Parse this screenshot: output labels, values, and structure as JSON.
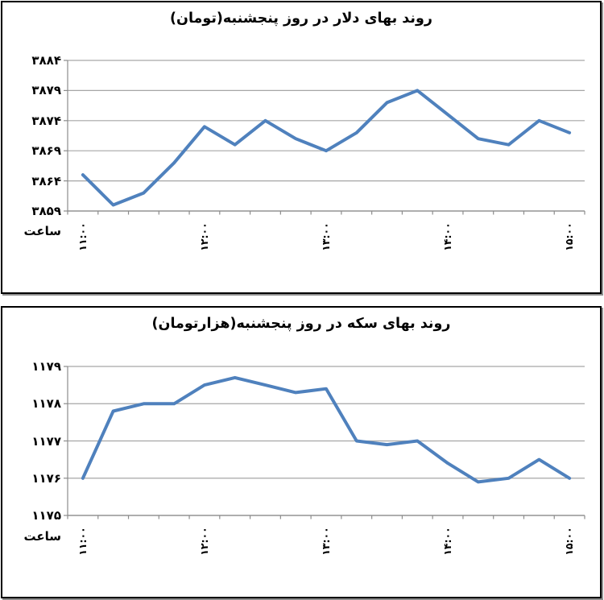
{
  "page": {
    "background": "#ffffff"
  },
  "colors": {
    "line": "#4F81BD",
    "grid": "#A6A6A6",
    "axis": "#8C8C8C",
    "text": "#000000",
    "panel_border": "#000000"
  },
  "chart_data": [
    {
      "type": "line",
      "title": "روند بهای دلار در روز پنجشنبه(تومان)",
      "xlabel": "ساعت",
      "ylabel": "",
      "x": [
        "11:00",
        "11:15",
        "11:30",
        "11:45",
        "12:00",
        "12:15",
        "12:30",
        "12:45",
        "13:00",
        "13:15",
        "13:30",
        "13:45",
        "14:00",
        "14:15",
        "14:30",
        "14:45",
        "15:00"
      ],
      "values": [
        3865,
        3860,
        3862,
        3867,
        3873,
        3870,
        3874,
        3871,
        3869,
        3872,
        3877,
        3879,
        3875,
        3871,
        3870,
        3874,
        3872
      ],
      "ylim": [
        3859,
        3884
      ],
      "yticks": [
        3884,
        3879,
        3874,
        3869,
        3864,
        3859
      ],
      "ytick_labels": [
        "۳۸۸۴",
        "۳۸۷۹",
        "۳۸۷۴",
        "۳۸۶۹",
        "۳۸۶۴",
        "۳۸۵۹"
      ],
      "xtick_labels": [
        "۱۱:۰۰",
        "۱۲:۰۰",
        "۱۳:۰۰",
        "۱۴:۰۰",
        "۱۵:۰۰"
      ],
      "xtick_indices": [
        0,
        4,
        8,
        12,
        16
      ],
      "grid": true,
      "legend": "none",
      "line_color": "#4F81BD"
    },
    {
      "type": "line",
      "title": "روند بهای سکه در روز پنجشنبه(هزارتومان)",
      "xlabel": "ساعت",
      "ylabel": "",
      "x": [
        "11:00",
        "11:15",
        "11:30",
        "11:45",
        "12:00",
        "12:15",
        "12:30",
        "12:45",
        "13:00",
        "13:15",
        "13:30",
        "13:45",
        "14:00",
        "14:15",
        "14:30",
        "14:45",
        "15:00"
      ],
      "values": [
        1176,
        1177.8,
        1178,
        1178,
        1178.5,
        1178.7,
        1178.5,
        1178.3,
        1178.4,
        1177,
        1176.9,
        1177,
        1176.4,
        1175.9,
        1176,
        1176.5,
        1176
      ],
      "ylim": [
        1175,
        1179
      ],
      "yticks": [
        1179,
        1178,
        1177,
        1176,
        1175
      ],
      "ytick_labels": [
        "۱۱۷۹",
        "۱۱۷۸",
        "۱۱۷۷",
        "۱۱۷۶",
        "۱۱۷۵"
      ],
      "xtick_labels": [
        "۱۱:۰۰",
        "۱۲:۰۰",
        "۱۳:۰۰",
        "۱۴:۰۰",
        "۱۵:۰۰"
      ],
      "xtick_indices": [
        0,
        4,
        8,
        12,
        16
      ],
      "grid": true,
      "legend": "none",
      "line_color": "#4F81BD"
    }
  ]
}
